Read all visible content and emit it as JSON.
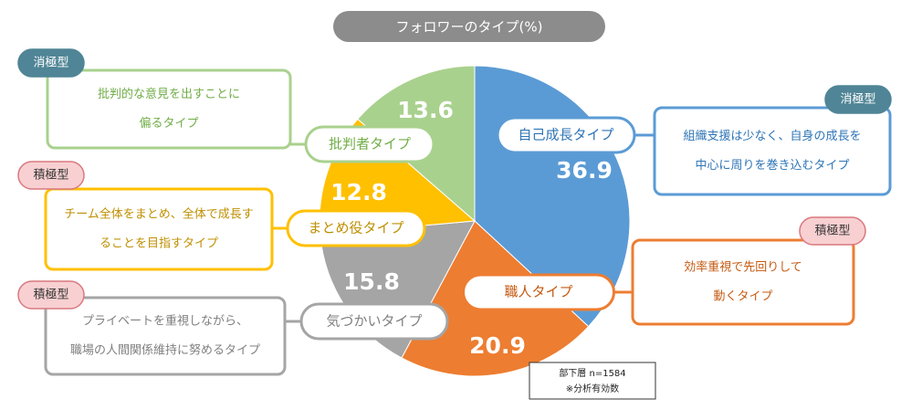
{
  "chart_data": {
    "type": "pie",
    "title": "フォロワーのタイプ(%)",
    "categories": [
      "自己成長タイプ",
      "職人タイプ",
      "気づかいタイプ",
      "まとめ役タイプ",
      "批判者タイプ"
    ],
    "values": [
      36.9,
      20.9,
      15.8,
      12.8,
      13.6
    ],
    "colors": [
      "#5b9bd5",
      "#ed7d31",
      "#a5a5a5",
      "#ffc000",
      "#a9d18e"
    ],
    "descriptions": [
      [
        "組織支援は少なく、自身の成長を",
        "中心に周りを巻き込むタイプ"
      ],
      [
        "効率重視で先回りして",
        "動くタイプ"
      ],
      [
        "プライベートを重視しながら、",
        "職場の人間関係維持に努めるタイプ"
      ],
      [
        "チーム全体をまとめ、全体で成長す",
        "ることを目指すタイプ"
      ],
      [
        "批判的な意見を出すことに",
        "偏るタイプ"
      ]
    ],
    "tags": [
      "消極型",
      "積極型",
      "積極型",
      "積極型",
      "消極型"
    ],
    "note": [
      "部下層 n=1584",
      "※分析有効数"
    ]
  }
}
